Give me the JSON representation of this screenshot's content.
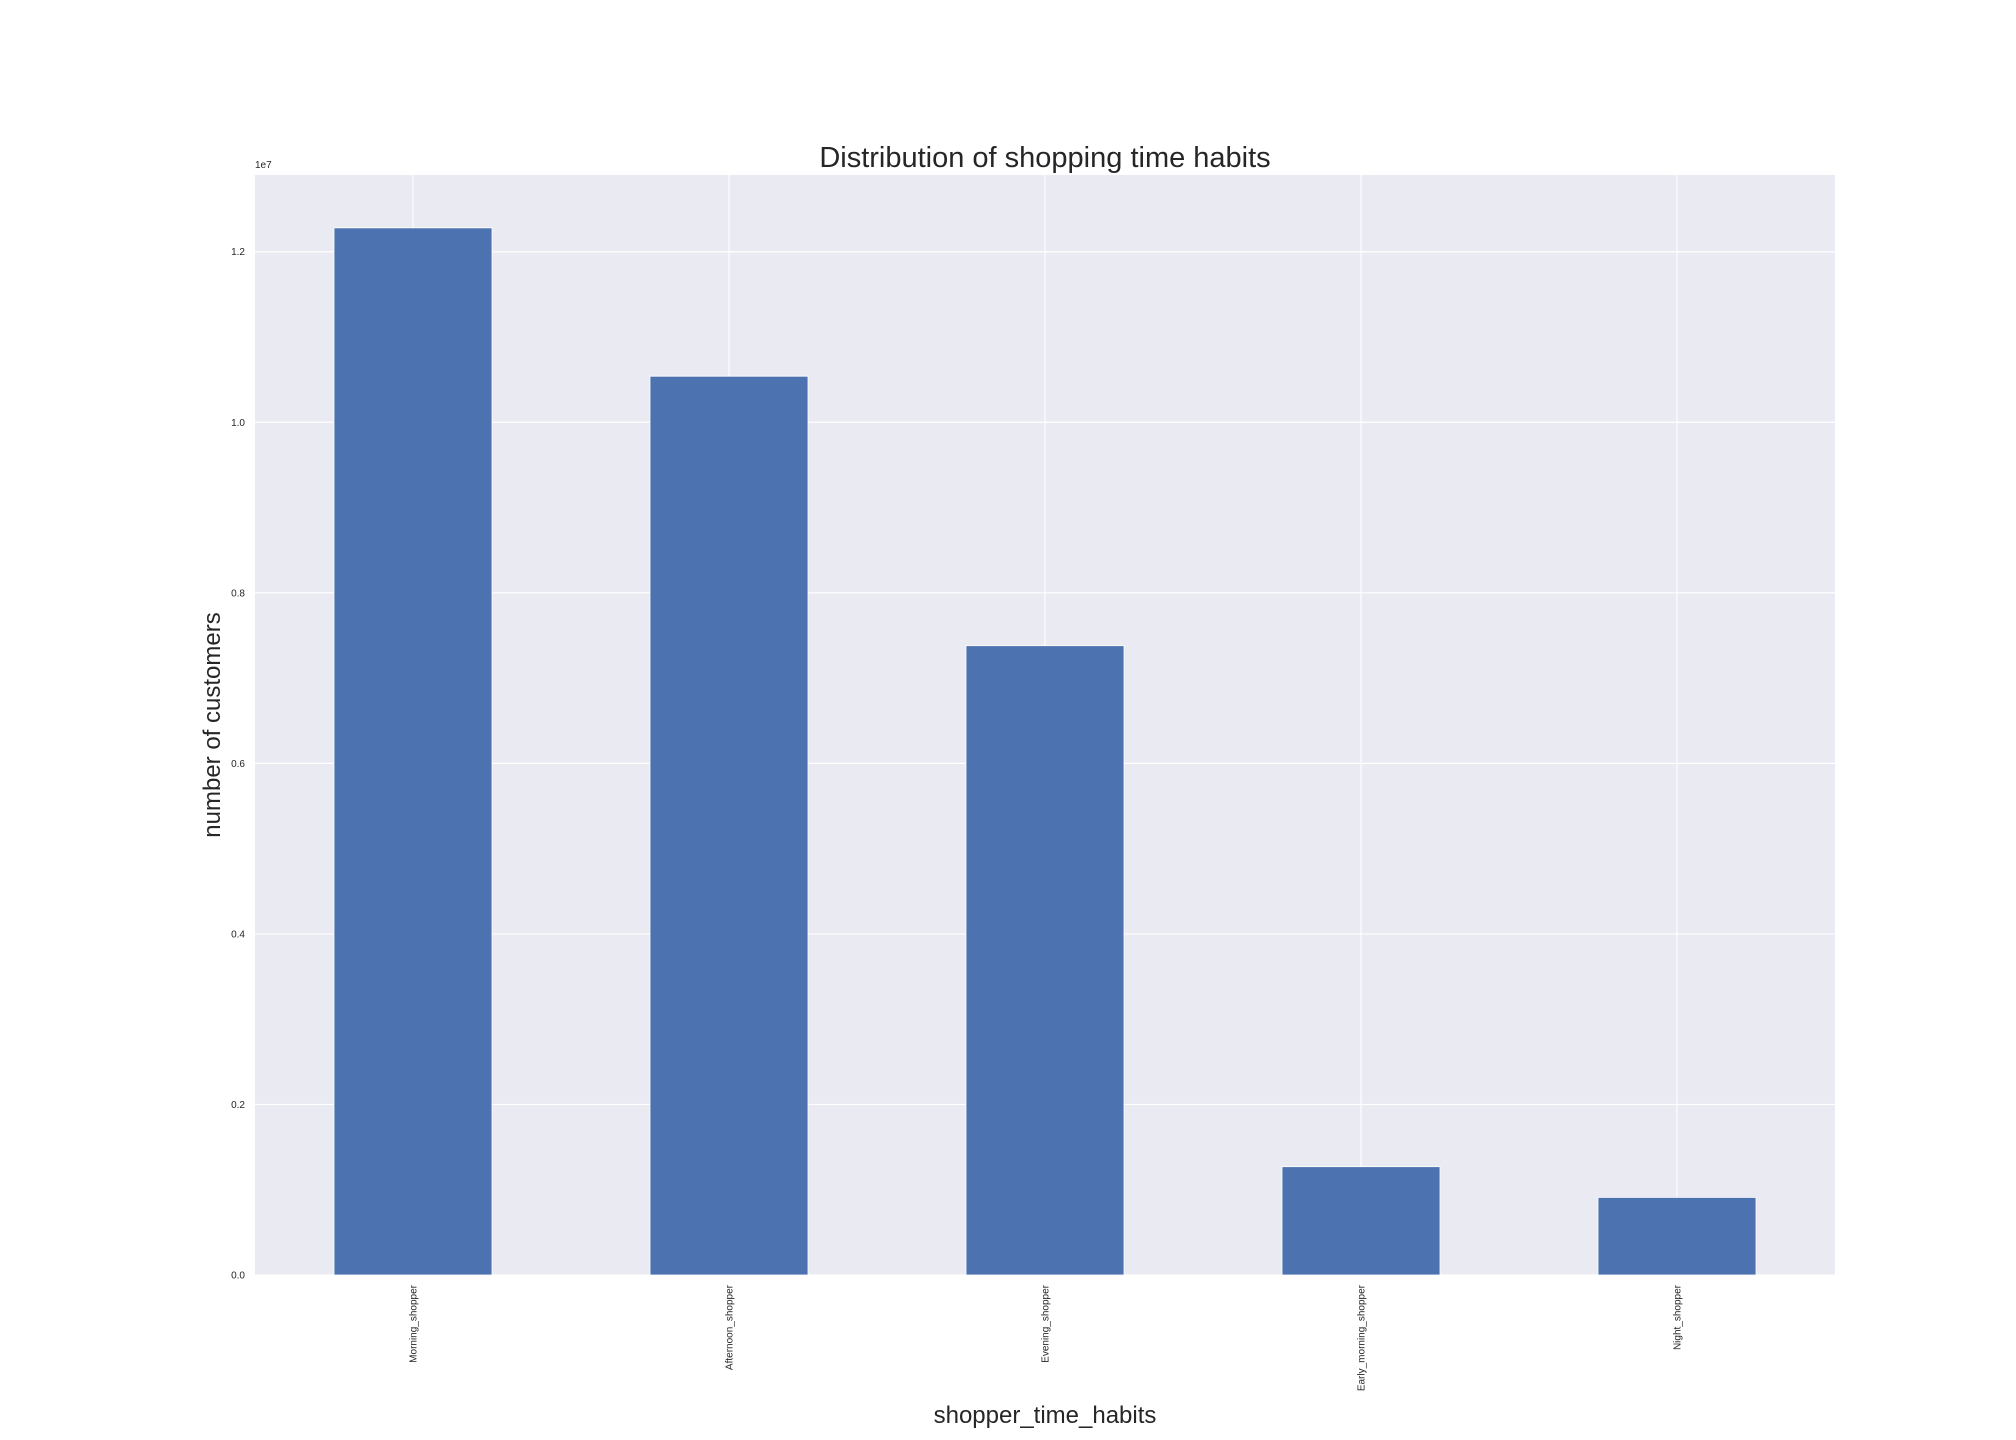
{
  "chart_data": {
    "type": "bar",
    "title": "Distribution of shopping time habits",
    "xlabel": "shopper_time_habits",
    "ylabel": "number of customers",
    "y_scale_label": "1e7",
    "categories": [
      "Morning_shopper",
      "Afternoon_shopper",
      "Evening_shopper",
      "Early_morning_shopper",
      "Night_shopper"
    ],
    "values": [
      12280000,
      10540000,
      7380000,
      1270000,
      910000
    ],
    "y_ticks": [
      0,
      2000000,
      4000000,
      6000000,
      8000000,
      10000000,
      12000000
    ],
    "y_tick_labels": [
      "0.0",
      "0.2",
      "0.4",
      "0.6",
      "0.8",
      "1.0",
      "1.2"
    ],
    "ylim": [
      0,
      12900000
    ],
    "grid": true,
    "bar_color": "#4c72b0",
    "plot_background": "#eaeaf2",
    "grid_color": "#ffffff"
  }
}
